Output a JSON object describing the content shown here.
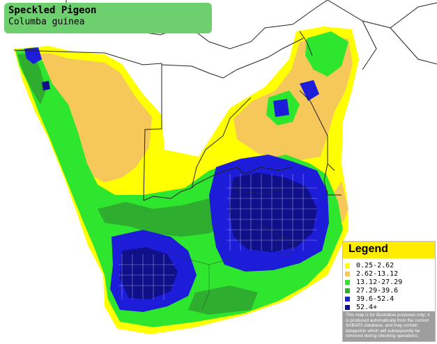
{
  "title": {
    "common_name": "Speckled Pigeon",
    "scientific_name": "Columba guinea"
  },
  "legend": {
    "heading": "Legend",
    "items": [
      {
        "label": "0.25-2.62",
        "color": "#ffff00"
      },
      {
        "label": "2.62-13.12",
        "color": "#f6c85a"
      },
      {
        "label": "13.12-27.29",
        "color": "#2ee62e"
      },
      {
        "label": "27.29-39.6",
        "color": "#2fad2f"
      },
      {
        "label": "39.6-52.4",
        "color": "#1c1cd9"
      },
      {
        "label": "52.4+",
        "color": "#10108a"
      }
    ],
    "disclaimer": "This map is for illustrative purposes only; it is produced automatically from the current SABAP2 database, and may contain datapoints which will subsequently be removed during checking operations."
  },
  "map": {
    "border_color": "#222222",
    "background_color": "#ffffff"
  }
}
